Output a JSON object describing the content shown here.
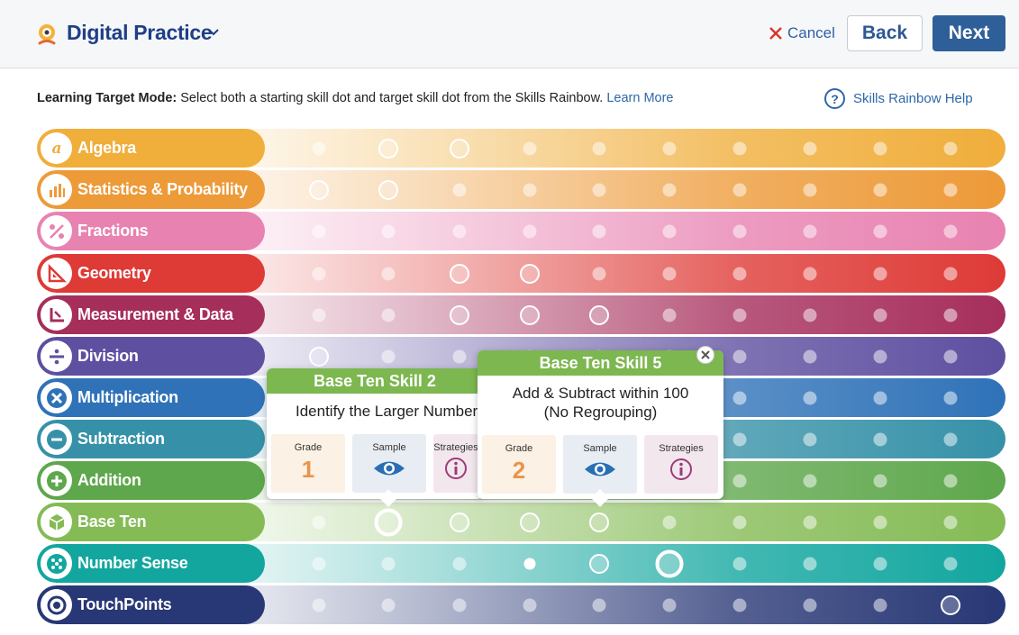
{
  "header": {
    "app_title": "Digital Practice",
    "cancel_label": "Cancel",
    "back_label": "Back",
    "next_label": "Next"
  },
  "instruction": {
    "mode_label": "Learning Target Mode:",
    "text": " Select both a starting skill dot and target skill dot from the Skills Rainbow. ",
    "learn_more": "Learn More",
    "help_label": "Skills Rainbow Help"
  },
  "rows": [
    {
      "label": "Algebra",
      "color": "#f0ae3b",
      "icon": "algebra-icon"
    },
    {
      "label": "Statistics & Probability",
      "color": "#ed9a38",
      "icon": "bar-chart-icon"
    },
    {
      "label": "Fractions",
      "color": "#e882b1",
      "icon": "percent-icon"
    },
    {
      "label": "Geometry",
      "color": "#de3a36",
      "icon": "triangle-ruler-icon"
    },
    {
      "label": "Measurement & Data",
      "color": "#a62e5b",
      "icon": "measure-icon"
    },
    {
      "label": "Division",
      "color": "#5e4fa0",
      "icon": "divide-icon"
    },
    {
      "label": "Multiplication",
      "color": "#2f72b8",
      "icon": "multiply-icon"
    },
    {
      "label": "Subtraction",
      "color": "#3691a8",
      "icon": "minus-icon"
    },
    {
      "label": "Addition",
      "color": "#5ea74c",
      "icon": "plus-icon"
    },
    {
      "label": "Base Ten",
      "color": "#84bb55",
      "icon": "cube-icon"
    },
    {
      "label": "Number Sense",
      "color": "#12a69f",
      "icon": "dots-icon"
    },
    {
      "label": "TouchPoints",
      "color": "#283775",
      "icon": "touchpoint-icon"
    }
  ],
  "popovers": [
    {
      "title": "Base Ten Skill 2",
      "desc": "Identify the Larger Number",
      "grade_label": "Grade",
      "grade": "1",
      "sample_label": "Sample",
      "strategies_label": "Strategies"
    },
    {
      "title": "Base Ten Skill 5",
      "desc_line1": "Add & Subtract within 100",
      "desc_line2": "(No Regrouping)",
      "grade_label": "Grade",
      "grade": "2",
      "sample_label": "Sample",
      "strategies_label": "Strategies"
    }
  ]
}
